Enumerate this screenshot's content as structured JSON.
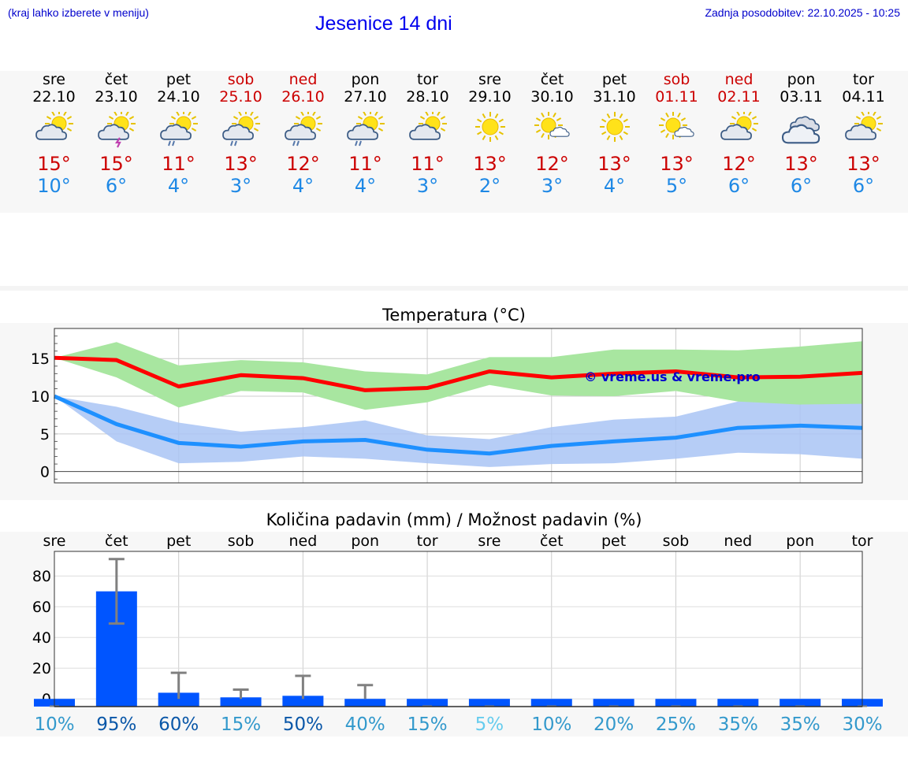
{
  "header": {
    "left_note": "(kraj lahko izberete v meniju)",
    "title": "Jesenice 14 dni",
    "updated": "Zadnja posodobitev: 22.10.2025 - 10:25"
  },
  "days": [
    {
      "name": "sre",
      "date": "22.10",
      "icon": "sun-cloud-icon",
      "tmax": "15°",
      "tmin": "10°",
      "weekend": false
    },
    {
      "name": "čet",
      "date": "23.10",
      "icon": "sun-cloud-lightning-icon",
      "tmax": "15°",
      "tmin": "6°",
      "weekend": false
    },
    {
      "name": "pet",
      "date": "24.10",
      "icon": "sun-cloud-rain-icon",
      "tmax": "11°",
      "tmin": "4°",
      "weekend": false
    },
    {
      "name": "sob",
      "date": "25.10",
      "icon": "sun-cloud-rain-icon",
      "tmax": "13°",
      "tmin": "3°",
      "weekend": true
    },
    {
      "name": "ned",
      "date": "26.10",
      "icon": "sun-cloud-rain-icon",
      "tmax": "12°",
      "tmin": "4°",
      "weekend": true
    },
    {
      "name": "pon",
      "date": "27.10",
      "icon": "sun-cloud-rain-icon",
      "tmax": "11°",
      "tmin": "4°",
      "weekend": false
    },
    {
      "name": "tor",
      "date": "28.10",
      "icon": "sun-cloud-icon",
      "tmax": "11°",
      "tmin": "3°",
      "weekend": false
    },
    {
      "name": "sre",
      "date": "29.10",
      "icon": "sun-icon",
      "tmax": "13°",
      "tmin": "2°",
      "weekend": false
    },
    {
      "name": "čet",
      "date": "30.10",
      "icon": "sun-small-cloud-icon",
      "tmax": "12°",
      "tmin": "3°",
      "weekend": false
    },
    {
      "name": "pet",
      "date": "31.10",
      "icon": "sun-icon",
      "tmax": "13°",
      "tmin": "4°",
      "weekend": false
    },
    {
      "name": "sob",
      "date": "01.11",
      "icon": "sun-small-cloud-icon",
      "tmax": "13°",
      "tmin": "5°",
      "weekend": true
    },
    {
      "name": "ned",
      "date": "02.11",
      "icon": "sun-cloud-icon",
      "tmax": "12°",
      "tmin": "6°",
      "weekend": true
    },
    {
      "name": "pon",
      "date": "03.11",
      "icon": "cloudy-icon",
      "tmax": "13°",
      "tmin": "6°",
      "weekend": false
    },
    {
      "name": "tor",
      "date": "04.11",
      "icon": "sun-cloud-icon",
      "tmax": "13°",
      "tmin": "6°",
      "weekend": false
    }
  ],
  "colors": {
    "max_line": "#ff0000",
    "min_line": "#1e90ff",
    "max_band": "#a8e6a0",
    "min_band": "#a9c4f5",
    "bar": "#0055ff",
    "error_bar": "#808080",
    "weekend": "#cc0000",
    "watermark": "#0000cc"
  },
  "chart_data": [
    {
      "type": "line",
      "title": "Temperatura (°C)",
      "watermark": "© vreme.us & vreme.pro",
      "ylim": [
        -1.5,
        19
      ],
      "yticks": [
        0,
        5,
        10,
        15
      ],
      "series": [
        {
          "name": "max",
          "values": [
            15.1,
            14.8,
            11.3,
            12.8,
            12.4,
            10.8,
            11.1,
            13.3,
            12.5,
            13.0,
            13.3,
            12.5,
            12.6,
            13.1
          ],
          "band_low": [
            15.1,
            12.5,
            8.5,
            10.7,
            10.5,
            8.2,
            9.2,
            11.5,
            10.1,
            10.0,
            10.7,
            9.3,
            8.9,
            9.0
          ],
          "band_high": [
            15.1,
            17.2,
            14.1,
            14.8,
            14.5,
            13.3,
            12.9,
            15.2,
            15.2,
            16.2,
            16.2,
            16.1,
            16.6,
            17.3
          ]
        },
        {
          "name": "min",
          "values": [
            10.0,
            6.3,
            3.8,
            3.3,
            4.0,
            4.2,
            2.9,
            2.4,
            3.4,
            4.0,
            4.5,
            5.8,
            6.1,
            5.8
          ],
          "band_low": [
            10.0,
            4.0,
            1.1,
            1.3,
            2.0,
            1.7,
            1.1,
            0.6,
            1.0,
            1.1,
            1.7,
            2.5,
            2.3,
            1.7
          ],
          "band_high": [
            10.0,
            8.6,
            6.5,
            5.3,
            5.9,
            6.8,
            4.8,
            4.3,
            5.9,
            6.9,
            7.3,
            9.3,
            10.0,
            9.9
          ]
        }
      ]
    },
    {
      "type": "bar",
      "title": "Količina padavin (mm) / Možnost padavin (%)",
      "categories": [
        "sre",
        "čet",
        "pet",
        "sob",
        "ned",
        "pon",
        "tor",
        "sre",
        "čet",
        "pet",
        "sob",
        "ned",
        "pon",
        "tor"
      ],
      "values": [
        0,
        70,
        4,
        1,
        2,
        0,
        0,
        0,
        0,
        0,
        0,
        0,
        0,
        0
      ],
      "error_high": [
        0,
        91,
        17,
        6,
        15,
        9,
        0,
        0,
        0,
        0,
        0,
        0,
        0,
        0
      ],
      "error_low": [
        0,
        49,
        0,
        0,
        0,
        0,
        0,
        0,
        0,
        0,
        0,
        0,
        0,
        0
      ],
      "ylim": [
        -5,
        96
      ],
      "yticks": [
        0,
        20,
        40,
        60,
        80
      ],
      "probability": [
        "10%",
        "95%",
        "60%",
        "15%",
        "50%",
        "40%",
        "15%",
        "5%",
        "10%",
        "20%",
        "25%",
        "35%",
        "35%",
        "30%"
      ],
      "probability_colors": [
        "#3399cc",
        "#0a57a8",
        "#0a57a8",
        "#3399cc",
        "#0a57a8",
        "#3399cc",
        "#3399cc",
        "#66ccee",
        "#3399cc",
        "#3399cc",
        "#3399cc",
        "#3399cc",
        "#3399cc",
        "#3399cc"
      ]
    }
  ]
}
